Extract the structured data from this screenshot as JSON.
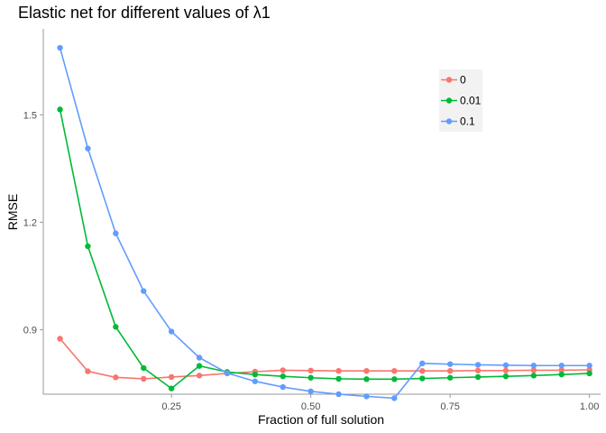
{
  "chart_data": {
    "type": "line",
    "title": "Elastic net for different values of λ1",
    "xlabel": "Fraction of full solution",
    "ylabel": "RMSE",
    "xlim": [
      0.02,
      1.02
    ],
    "ylim": [
      0.72,
      1.74
    ],
    "x_ticks": [
      0.25,
      0.5,
      0.75,
      1.0
    ],
    "x_tick_labels": [
      "0.25",
      "0.50",
      "0.75",
      "1.00"
    ],
    "y_ticks": [
      0.9,
      1.2,
      1.5
    ],
    "y_tick_labels": [
      "0.9",
      "1.2",
      "1.5"
    ],
    "grid": false,
    "legend_position": "top-right",
    "x": [
      0.05,
      0.1,
      0.15,
      0.2,
      0.25,
      0.3,
      0.35,
      0.4,
      0.45,
      0.5,
      0.55,
      0.6,
      0.65,
      0.7,
      0.75,
      0.8,
      0.85,
      0.9,
      0.95,
      1.0
    ],
    "series": [
      {
        "name": "0",
        "color": "#F8766D",
        "values": [
          0.875,
          0.784,
          0.767,
          0.763,
          0.768,
          0.772,
          0.778,
          0.783,
          0.787,
          0.786,
          0.785,
          0.785,
          0.785,
          0.785,
          0.785,
          0.786,
          0.786,
          0.787,
          0.787,
          0.788
        ]
      },
      {
        "name": "0.01",
        "color": "#00BA38",
        "values": [
          1.515,
          1.133,
          0.908,
          0.793,
          0.736,
          0.799,
          0.782,
          0.775,
          0.77,
          0.766,
          0.763,
          0.762,
          0.762,
          0.764,
          0.766,
          0.768,
          0.77,
          0.772,
          0.775,
          0.778
        ]
      },
      {
        "name": "0.1",
        "color": "#619CFF",
        "values": [
          1.687,
          1.406,
          1.169,
          1.008,
          0.895,
          0.822,
          0.779,
          0.756,
          0.74,
          0.728,
          0.72,
          0.714,
          0.709,
          0.806,
          0.804,
          0.802,
          0.801,
          0.8,
          0.8,
          0.8
        ]
      }
    ]
  }
}
